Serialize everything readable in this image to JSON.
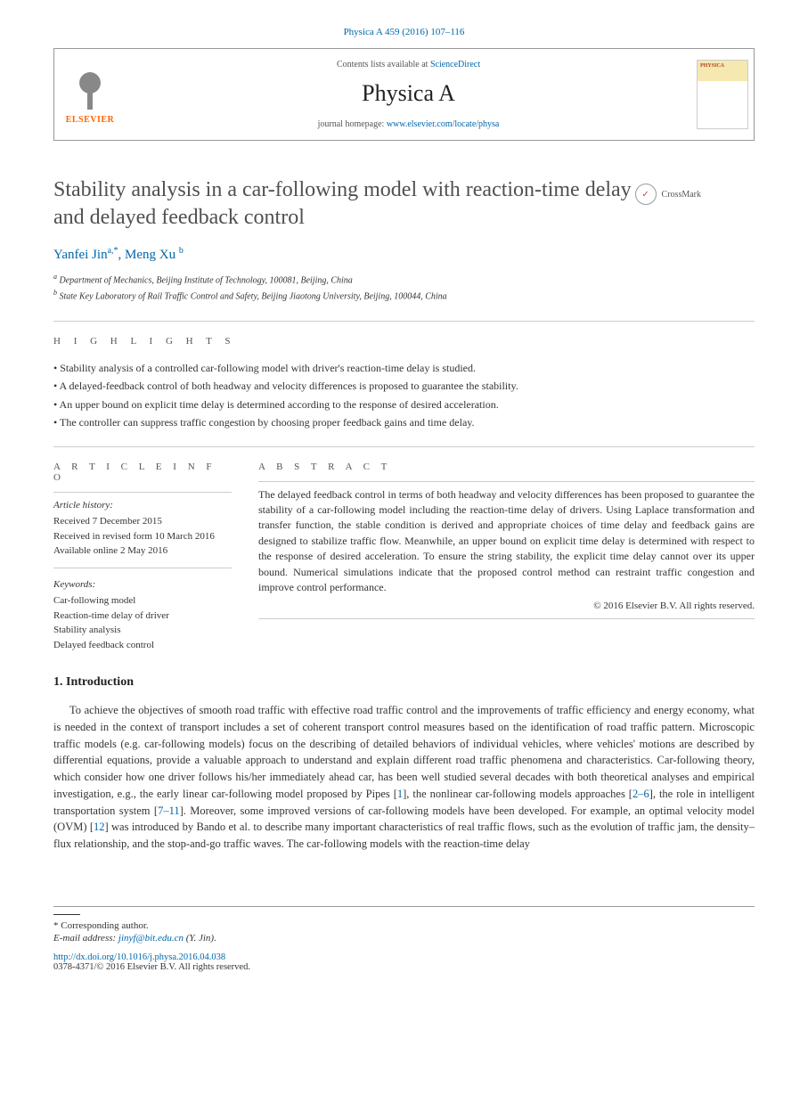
{
  "journal_ref": "Physica A 459 (2016) 107–116",
  "header": {
    "contents_prefix": "Contents lists available at ",
    "contents_link": "ScienceDirect",
    "journal_title": "Physica A",
    "homepage_prefix": "journal homepage: ",
    "homepage_url": "www.elsevier.com/locate/physa",
    "elsevier_label": "ELSEVIER"
  },
  "crossmark_label": "CrossMark",
  "article": {
    "title": "Stability analysis in a car-following model with reaction-time delay and delayed feedback control",
    "authors_html": "Yanfei Jin",
    "author1_sup": "a,*",
    "author2": "Meng Xu",
    "author2_sup": "b",
    "affiliations": {
      "a": "Department of Mechanics, Beijing Institute of Technology, 100081, Beijing, China",
      "b": "State Key Laboratory of Rail Traffic Control and Safety, Beijing Jiaotong University, Beijing, 100044, China"
    }
  },
  "highlights_label": "H I G H L I G H T S",
  "highlights": [
    "Stability analysis of a controlled car-following model with driver's reaction-time delay is studied.",
    "A delayed-feedback control of both headway and velocity differences is proposed to guarantee the stability.",
    "An upper bound on explicit time delay is determined according to the response of desired acceleration.",
    "The controller can suppress traffic congestion by choosing proper feedback gains and time delay."
  ],
  "article_info_label": "A R T I C L E   I N F O",
  "abstract_label": "A B S T R A C T",
  "article_info": {
    "history_head": "Article history:",
    "received": "Received 7 December 2015",
    "revised": "Received in revised form 10 March 2016",
    "online": "Available online 2 May 2016",
    "keywords_head": "Keywords:",
    "keywords": [
      "Car-following model",
      "Reaction-time delay of driver",
      "Stability analysis",
      "Delayed feedback control"
    ]
  },
  "abstract": "The delayed feedback control in terms of both headway and velocity differences has been proposed to guarantee the stability of a car-following model including the reaction-time delay of drivers. Using Laplace transformation and transfer function, the stable condition is derived and appropriate choices of time delay and feedback gains are designed to stabilize traffic flow. Meanwhile, an upper bound on explicit time delay is determined with respect to the response of desired acceleration. To ensure the string stability, the explicit time delay cannot over its upper bound. Numerical simulations indicate that the proposed control method can restraint traffic congestion and improve control performance.",
  "abstract_copyright": "© 2016 Elsevier B.V. All rights reserved.",
  "intro_head": "1. Introduction",
  "intro_body_pre": "To achieve the objectives of smooth road traffic with effective road traffic control and the improvements of traffic efficiency and energy economy, what is needed in the context of transport includes a set of coherent transport control measures based on the identification of road traffic pattern. Microscopic traffic models (e.g. car-following models) focus on the describing of detailed behaviors of individual vehicles, where vehicles' motions are described by differential equations, provide a valuable approach to understand and explain different road traffic phenomena and characteristics. Car-following theory, which consider how one driver follows his/her immediately ahead car, has been well studied several decades with both theoretical analyses and empirical investigation, e.g., the early linear car-following model proposed by Pipes [",
  "ref1": "1",
  "intro_mid1": "], the nonlinear car-following models approaches [",
  "ref2": "2–6",
  "intro_mid2": "], the role in intelligent transportation system [",
  "ref3": "7–11",
  "intro_mid3": "]. Moreover, some improved versions of car-following models have been developed. For example, an optimal velocity model (OVM) [",
  "ref4": "12",
  "intro_body_post": "] was introduced by Bando et al. to describe many important characteristics of real traffic flows, such as the evolution of traffic jam, the density–flux relationship, and the stop-and-go traffic waves. The car-following models with the reaction-time delay",
  "footer": {
    "corresp": "* Corresponding author.",
    "email_label": "E-mail address: ",
    "email": "jinyf@bit.edu.cn",
    "email_suffix": " (Y. Jin).",
    "doi": "http://dx.doi.org/10.1016/j.physa.2016.04.038",
    "issn_line": "0378-4371/© 2016 Elsevier B.V. All rights reserved."
  }
}
